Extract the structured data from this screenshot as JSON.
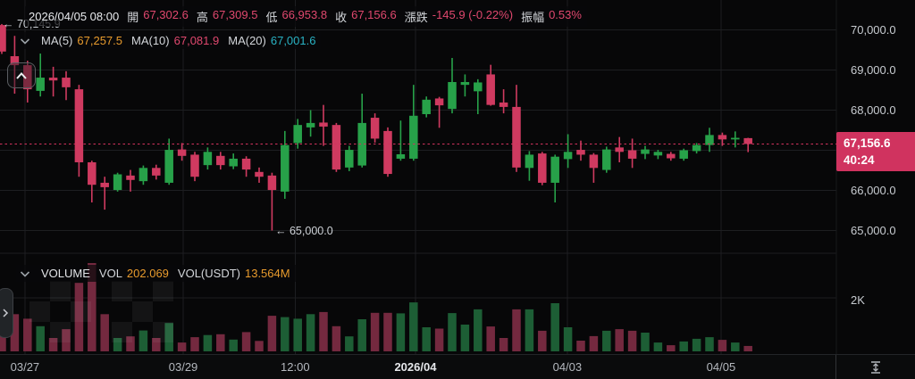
{
  "colors": {
    "up": "#27a149",
    "down": "#cf3a60",
    "vol_up": "#1d5e35",
    "vol_down": "#74293f",
    "pink": "#e0486e",
    "orange": "#e89b2d",
    "cyan": "#29b2c3",
    "badge": "#d0335f",
    "grid": "#1d1e21",
    "dotted_line": "#d2325e"
  },
  "header": {
    "date": "2026/04/05 08:00",
    "fields": [
      {
        "label": "開",
        "value": "67,302.6"
      },
      {
        "label": "高",
        "value": "67,309.5"
      },
      {
        "label": "低",
        "value": "66,953.8"
      },
      {
        "label": "收",
        "value": "67,156.6"
      },
      {
        "label": "漲跌",
        "value": "-145.9 (-0.22%)"
      },
      {
        "label": "振幅",
        "value": "0.53%"
      }
    ]
  },
  "ma_row": {
    "items": [
      {
        "label": "MA(5)",
        "value": "67,257.5"
      },
      {
        "label": "MA(10)",
        "value": "67,081.9"
      },
      {
        "label": "MA(20)",
        "value": "67,001.6"
      }
    ]
  },
  "annotations": {
    "high": {
      "arrow": "←",
      "label": "70,145.9"
    },
    "low": {
      "arrow": "←",
      "label": "65,000.0"
    }
  },
  "price_badge": {
    "price": "67,156.6",
    "countdown": "40:24"
  },
  "volume_header": {
    "title": "VOLUME",
    "vol_label": "VOL",
    "vol_value": "202.069",
    "vol_usdt_label": "VOL(USDT)",
    "vol_usdt_value": "13.564M"
  },
  "volume_axis_label": "2K",
  "chart_data": {
    "type": "candlestick",
    "title": "",
    "y_axis": {
      "gridline_values": [
        70000,
        69000,
        68000,
        67000,
        66000,
        65000
      ],
      "tick_labels": [
        {
          "value": 70000,
          "label": "70,000.0"
        },
        {
          "value": 69000,
          "label": "69,000.0"
        },
        {
          "value": 68000,
          "label": "68,000.0"
        },
        {
          "value": 66000,
          "label": "66,000.0"
        },
        {
          "value": 65000,
          "label": "65,000.0"
        }
      ]
    },
    "current_price": 67156.6,
    "high_annotation_price": 70145.9,
    "low_annotation_price": 65000.0,
    "volume_axis": {
      "tick_value": 2000,
      "tick_label": "2K"
    },
    "x_ticks": [
      {
        "label": "03/27",
        "index": 1.8,
        "emphasis": false
      },
      {
        "label": "03/29",
        "index": 14.1,
        "emphasis": false
      },
      {
        "label": "12:00",
        "index": 22.8,
        "emphasis": false
      },
      {
        "label": "2026/04",
        "index": 32.15,
        "emphasis": true
      },
      {
        "label": "04/03",
        "index": 43.95,
        "emphasis": false
      },
      {
        "label": "04/05",
        "index": 55.9,
        "emphasis": false
      }
    ],
    "candles": {
      "columns": [
        "open",
        "high",
        "low",
        "close",
        "volume"
      ],
      "rows": [
        [
          70120,
          70145.9,
          69400,
          69460,
          600
        ],
        [
          69344,
          69850,
          68410,
          69120,
          1390
        ],
        [
          69120,
          69230,
          68190,
          68520,
          1220
        ],
        [
          68480,
          69410,
          68340,
          68810,
          940
        ],
        [
          68810,
          69080,
          68340,
          68740,
          500
        ],
        [
          68810,
          68970,
          68250,
          68570,
          830
        ],
        [
          68520,
          68630,
          66340,
          66700,
          2560
        ],
        [
          66700,
          66740,
          65700,
          66140,
          3300
        ],
        [
          66190,
          66340,
          65520,
          66080,
          1390
        ],
        [
          66010,
          66440,
          65970,
          66400,
          500
        ],
        [
          66370,
          66510,
          65970,
          66260,
          560
        ],
        [
          66230,
          66620,
          66140,
          66560,
          780
        ],
        [
          66560,
          66640,
          66270,
          66370,
          500
        ],
        [
          66190,
          67290,
          66140,
          67010,
          1060
        ],
        [
          67020,
          67180,
          66740,
          66860,
          330
        ],
        [
          66890,
          66960,
          66230,
          66340,
          530
        ],
        [
          66630,
          67070,
          66520,
          66960,
          610
        ],
        [
          66860,
          66960,
          66520,
          66630,
          640
        ],
        [
          66600,
          66920,
          66530,
          66790,
          440
        ],
        [
          66790,
          66850,
          66340,
          66520,
          720
        ],
        [
          66460,
          66570,
          66190,
          66340,
          390
        ],
        [
          66370,
          66440,
          65000,
          66010,
          1330
        ],
        [
          65970,
          67480,
          65790,
          67130,
          1280
        ],
        [
          67180,
          67780,
          67040,
          67630,
          1220
        ],
        [
          67570,
          68000,
          67340,
          67680,
          1390
        ],
        [
          67690,
          68130,
          67110,
          67590,
          1470
        ],
        [
          67630,
          67680,
          66460,
          66520,
          940
        ],
        [
          66570,
          67110,
          66480,
          67010,
          560
        ],
        [
          66620,
          68410,
          66570,
          67680,
          1200
        ],
        [
          67810,
          67920,
          67190,
          67290,
          1440
        ],
        [
          67480,
          67570,
          66340,
          66410,
          1440
        ],
        [
          66790,
          67740,
          66740,
          66900,
          1420
        ],
        [
          66790,
          68630,
          66740,
          67860,
          1830
        ],
        [
          67900,
          68340,
          67820,
          68260,
          900
        ],
        [
          68290,
          68330,
          67560,
          68120,
          850
        ],
        [
          68030,
          69300,
          67920,
          68700,
          1430
        ],
        [
          68630,
          68890,
          68340,
          68700,
          1000
        ],
        [
          68470,
          68770,
          67900,
          68690,
          1570
        ],
        [
          68890,
          69130,
          68110,
          68130,
          930
        ],
        [
          68190,
          68520,
          67920,
          68080,
          500
        ],
        [
          68080,
          68630,
          66460,
          66570,
          1570
        ],
        [
          66560,
          66980,
          66240,
          66890,
          1570
        ],
        [
          66920,
          66960,
          66130,
          66190,
          770
        ],
        [
          66190,
          66890,
          65700,
          66840,
          1800
        ],
        [
          66780,
          67400,
          66560,
          66960,
          900
        ],
        [
          67010,
          67240,
          66740,
          66890,
          400
        ],
        [
          66890,
          66930,
          66190,
          66560,
          570
        ],
        [
          66510,
          67090,
          66440,
          67020,
          770
        ],
        [
          67070,
          67330,
          66700,
          66960,
          830
        ],
        [
          67000,
          67290,
          66560,
          66790,
          770
        ],
        [
          66910,
          67110,
          66780,
          67020,
          700
        ],
        [
          66870,
          67010,
          66780,
          66960,
          330
        ],
        [
          66910,
          66960,
          66740,
          66800,
          230
        ],
        [
          66790,
          67040,
          66740,
          67000,
          370
        ],
        [
          66980,
          67180,
          66920,
          67130,
          470
        ],
        [
          67130,
          67560,
          66960,
          67380,
          530
        ],
        [
          67380,
          67440,
          67110,
          67270,
          430
        ],
        [
          67270,
          67470,
          67070,
          67310,
          330
        ],
        [
          67302.6,
          67309.5,
          66953.8,
          67156.6,
          202.069
        ]
      ]
    }
  }
}
